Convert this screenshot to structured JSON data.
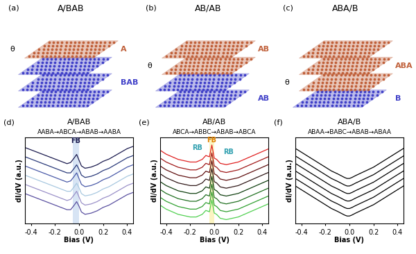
{
  "schematics": [
    {
      "label": "(a)",
      "title": "A/BAB",
      "top": "A",
      "bottom": "BAB",
      "angle": "θ"
    },
    {
      "label": "(b)",
      "title": "AB/AB",
      "top": "AB",
      "bottom": "AB",
      "angle": "θ"
    },
    {
      "label": "(c)",
      "title": "ABA/B",
      "top": "ABA",
      "bottom": "B",
      "angle": "θ"
    }
  ],
  "chart_data": [
    {
      "type": "line",
      "panel": "(d)",
      "title": "A/BAB",
      "subtitle": "AABA→ABCA→ABAB→AABA",
      "x_label": "Bias (V)",
      "y_label": "dI/dV (a.u.)",
      "x": [
        -0.45,
        -0.4,
        -0.35,
        -0.3,
        -0.25,
        -0.2,
        -0.15,
        -0.1,
        -0.07,
        -0.04,
        -0.02,
        0.0,
        0.02,
        0.05,
        0.1,
        0.15,
        0.2,
        0.25,
        0.3,
        0.35,
        0.4,
        0.45
      ],
      "series": [
        {
          "color": "#1a1a4e",
          "values": [
            7.6,
            7.4,
            7.2,
            7.0,
            6.8,
            6.6,
            6.4,
            6.2,
            6.3,
            6.7,
            7.0,
            6.5,
            6.0,
            5.8,
            5.9,
            6.1,
            6.4,
            6.6,
            6.9,
            7.2,
            7.5,
            7.7
          ]
        },
        {
          "color": "#2a3a7a",
          "values": [
            6.8,
            6.6,
            6.4,
            6.2,
            6.0,
            5.8,
            5.6,
            5.4,
            5.4,
            5.8,
            6.1,
            5.7,
            5.2,
            5.0,
            5.1,
            5.3,
            5.6,
            5.8,
            6.1,
            6.4,
            6.7,
            6.9
          ]
        },
        {
          "color": "#4a5aa8",
          "values": [
            6.0,
            5.8,
            5.6,
            5.4,
            5.2,
            5.0,
            4.8,
            4.6,
            4.7,
            5.1,
            5.4,
            4.9,
            4.4,
            4.2,
            4.3,
            4.5,
            4.8,
            5.0,
            5.3,
            5.6,
            5.9,
            6.1
          ]
        },
        {
          "color": "#a8c8e0",
          "values": [
            5.2,
            5.0,
            4.8,
            4.6,
            4.4,
            4.2,
            4.0,
            3.8,
            3.8,
            4.2,
            4.5,
            4.1,
            3.6,
            3.4,
            3.5,
            3.7,
            4.0,
            4.2,
            4.5,
            4.8,
            5.1,
            5.3
          ]
        },
        {
          "color": "#9a90c8",
          "values": [
            4.4,
            4.2,
            4.0,
            3.8,
            3.6,
            3.4,
            3.2,
            3.0,
            3.1,
            3.5,
            3.8,
            3.3,
            2.8,
            2.6,
            2.7,
            2.9,
            3.2,
            3.4,
            3.7,
            4.0,
            4.3,
            4.5
          ]
        },
        {
          "color": "#5a50a0",
          "values": [
            3.6,
            3.4,
            3.2,
            3.0,
            2.8,
            2.6,
            2.4,
            2.2,
            2.2,
            2.6,
            2.9,
            2.5,
            2.0,
            1.8,
            1.9,
            2.1,
            2.4,
            2.6,
            2.9,
            3.2,
            3.5,
            3.7
          ]
        }
      ],
      "xlim": [
        -0.45,
        0.45
      ],
      "xticks": [
        -0.4,
        -0.2,
        0.0,
        0.2,
        0.4
      ],
      "ylim": [
        1,
        8.5
      ],
      "yticks": [],
      "tick_labels": "x",
      "band": [
        -0.05,
        0.0
      ],
      "color": "#8fb4e0",
      "annotations": [
        {
          "text": "FB",
          "x": -0.03,
          "y": 7.85,
          "color": "#1a1a4e"
        }
      ]
    },
    {
      "type": "line",
      "panel": "(e)",
      "title": "AB/AB",
      "subtitle": "ABCA→ABBC→ABAB→ABCA",
      "x_label": "Bias (V)",
      "y_label": "dI/dV (a.u.)",
      "x": [
        -0.45,
        -0.4,
        -0.35,
        -0.3,
        -0.25,
        -0.2,
        -0.15,
        -0.1,
        -0.07,
        -0.04,
        -0.02,
        0.0,
        0.02,
        0.05,
        0.1,
        0.15,
        0.2,
        0.25,
        0.3,
        0.35,
        0.4,
        0.45
      ],
      "series": [
        {
          "color": "#e02020",
          "values": [
            6.6,
            6.3,
            6.1,
            5.9,
            5.8,
            5.7,
            5.7,
            5.9,
            6.2,
            6.1,
            7.0,
            6.0,
            5.9,
            5.6,
            5.5,
            5.6,
            5.7,
            5.9,
            6.1,
            6.3,
            6.5,
            6.7
          ]
        },
        {
          "color": "#a01818",
          "values": [
            6.0,
            5.7,
            5.5,
            5.3,
            5.2,
            5.1,
            5.1,
            5.3,
            5.6,
            5.5,
            6.4,
            5.4,
            5.3,
            5.0,
            4.9,
            5.0,
            5.1,
            5.3,
            5.5,
            5.7,
            5.9,
            6.1
          ]
        },
        {
          "color": "#601010",
          "values": [
            5.4,
            5.1,
            4.9,
            4.7,
            4.6,
            4.5,
            4.5,
            4.7,
            5.0,
            4.9,
            5.8,
            4.8,
            4.7,
            4.4,
            4.3,
            4.4,
            4.5,
            4.7,
            4.9,
            5.1,
            5.3,
            5.5
          ]
        },
        {
          "color": "#301818",
          "values": [
            4.8,
            4.5,
            4.3,
            4.1,
            4.0,
            3.9,
            3.9,
            4.1,
            4.4,
            4.3,
            5.2,
            4.2,
            4.1,
            3.8,
            3.7,
            3.8,
            3.9,
            4.1,
            4.3,
            4.5,
            4.7,
            4.9
          ]
        },
        {
          "color": "#104010",
          "values": [
            4.2,
            3.9,
            3.7,
            3.5,
            3.4,
            3.3,
            3.3,
            3.5,
            3.8,
            3.7,
            4.6,
            3.6,
            3.5,
            3.2,
            3.1,
            3.2,
            3.3,
            3.5,
            3.7,
            3.9,
            4.1,
            4.3
          ]
        },
        {
          "color": "#207020",
          "values": [
            3.6,
            3.3,
            3.1,
            2.9,
            2.8,
            2.7,
            2.7,
            2.9,
            3.2,
            3.1,
            4.0,
            3.0,
            2.9,
            2.6,
            2.5,
            2.6,
            2.7,
            2.9,
            3.1,
            3.3,
            3.5,
            3.7
          ]
        },
        {
          "color": "#30a030",
          "values": [
            3.0,
            2.7,
            2.5,
            2.3,
            2.2,
            2.1,
            2.1,
            2.3,
            2.6,
            2.5,
            3.4,
            2.4,
            2.3,
            2.0,
            1.9,
            2.0,
            2.1,
            2.3,
            2.5,
            2.7,
            2.9,
            3.1
          ]
        },
        {
          "color": "#50d050",
          "values": [
            2.4,
            2.1,
            1.9,
            1.7,
            1.6,
            1.5,
            1.5,
            1.7,
            2.0,
            1.9,
            2.8,
            1.8,
            1.7,
            1.4,
            1.3,
            1.4,
            1.5,
            1.7,
            1.9,
            2.1,
            2.3,
            2.5
          ]
        }
      ],
      "xlim": [
        -0.45,
        0.45
      ],
      "xticks": [
        -0.4,
        -0.2,
        0.0,
        0.2,
        0.4
      ],
      "ylim": [
        1,
        7.6
      ],
      "yticks": [],
      "tick_labels": "x",
      "band": [
        -0.04,
        0.0
      ],
      "color": "#f5e050",
      "annotations": [
        {
          "text": "FB",
          "x": -0.02,
          "y": 7.1,
          "color": "#e08000"
        },
        {
          "text": "RB",
          "x": -0.14,
          "y": 6.5,
          "color": "#30a0b0"
        },
        {
          "text": "RB",
          "x": 0.12,
          "y": 6.2,
          "color": "#30a0b0"
        }
      ]
    },
    {
      "type": "line",
      "panel": "(f)",
      "title": "ABA/B",
      "subtitle": "ABAA→BABC→ABAB→ABAA",
      "x_label": "Bias (V)",
      "y_label": "dI/dV (a.u.)",
      "x": [
        -0.45,
        -0.4,
        -0.35,
        -0.3,
        -0.25,
        -0.2,
        -0.15,
        -0.1,
        -0.07,
        -0.04,
        -0.02,
        0.0,
        0.02,
        0.05,
        0.1,
        0.15,
        0.2,
        0.25,
        0.3,
        0.35,
        0.4,
        0.45
      ],
      "series": [
        {
          "color": "#000000",
          "values": [
            4.6,
            4.4,
            4.2,
            4.0,
            3.8,
            3.6,
            3.4,
            3.25,
            3.15,
            3.05,
            3.0,
            3.0,
            3.05,
            3.15,
            3.3,
            3.45,
            3.6,
            3.8,
            4.0,
            4.2,
            4.4,
            4.6
          ]
        },
        {
          "color": "#000000",
          "values": [
            4.2,
            4.0,
            3.8,
            3.6,
            3.4,
            3.2,
            3.0,
            2.85,
            2.75,
            2.65,
            2.6,
            2.6,
            2.65,
            2.75,
            2.9,
            3.05,
            3.2,
            3.4,
            3.6,
            3.8,
            4.0,
            4.2
          ]
        },
        {
          "color": "#000000",
          "values": [
            3.8,
            3.6,
            3.4,
            3.2,
            3.0,
            2.8,
            2.6,
            2.45,
            2.35,
            2.25,
            2.2,
            2.2,
            2.25,
            2.35,
            2.5,
            2.65,
            2.8,
            3.0,
            3.2,
            3.4,
            3.6,
            3.8
          ]
        },
        {
          "color": "#000000",
          "values": [
            3.4,
            3.2,
            3.0,
            2.8,
            2.6,
            2.4,
            2.2,
            2.05,
            1.95,
            1.85,
            1.8,
            1.8,
            1.85,
            1.95,
            2.1,
            2.25,
            2.4,
            2.6,
            2.8,
            3.0,
            3.2,
            3.4
          ]
        },
        {
          "color": "#000000",
          "values": [
            3.0,
            2.8,
            2.6,
            2.4,
            2.2,
            2.0,
            1.8,
            1.65,
            1.55,
            1.45,
            1.4,
            1.4,
            1.45,
            1.55,
            1.7,
            1.85,
            2.0,
            2.2,
            2.4,
            2.6,
            2.8,
            3.0
          ]
        },
        {
          "color": "#000000",
          "values": [
            2.6,
            2.4,
            2.2,
            2.0,
            1.8,
            1.6,
            1.4,
            1.25,
            1.15,
            1.05,
            1.0,
            1.0,
            1.05,
            1.15,
            1.3,
            1.45,
            1.6,
            1.8,
            2.0,
            2.2,
            2.4,
            2.6
          ]
        }
      ],
      "xlim": [
        -0.45,
        0.45
      ],
      "xticks": [
        -0.4,
        -0.2,
        0.0,
        0.2,
        0.4
      ],
      "ylim": [
        0.6,
        5.2
      ],
      "yticks": [],
      "tick_labels": "x"
    }
  ]
}
